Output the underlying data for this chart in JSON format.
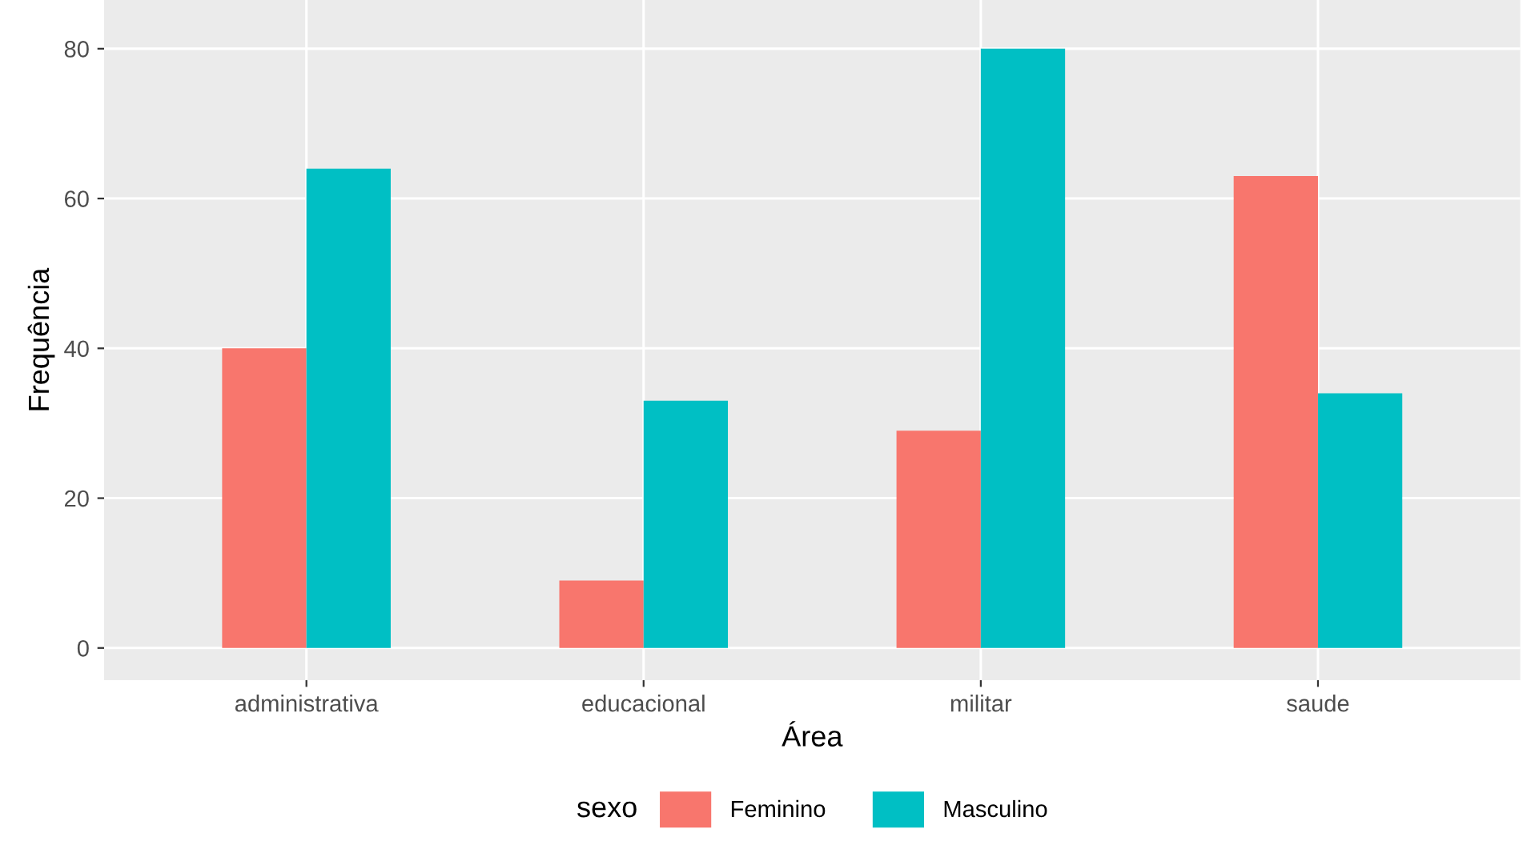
{
  "chart_data": {
    "type": "bar",
    "xlabel": "Área",
    "ylabel": "Frequência",
    "legend_title": "sexo",
    "categories": [
      "administrativa",
      "educacional",
      "militar",
      "saude"
    ],
    "series": [
      {
        "name": "Feminino",
        "color": "#f8766d",
        "values": [
          40,
          9,
          29,
          63
        ]
      },
      {
        "name": "Masculino",
        "color": "#00bfc4",
        "values": [
          64,
          33,
          80,
          34
        ]
      }
    ],
    "ylim": [
      -4.3,
      86.5
    ],
    "yticks": [
      0,
      20,
      40,
      60,
      80
    ],
    "grid": true,
    "legend": "bottom"
  }
}
